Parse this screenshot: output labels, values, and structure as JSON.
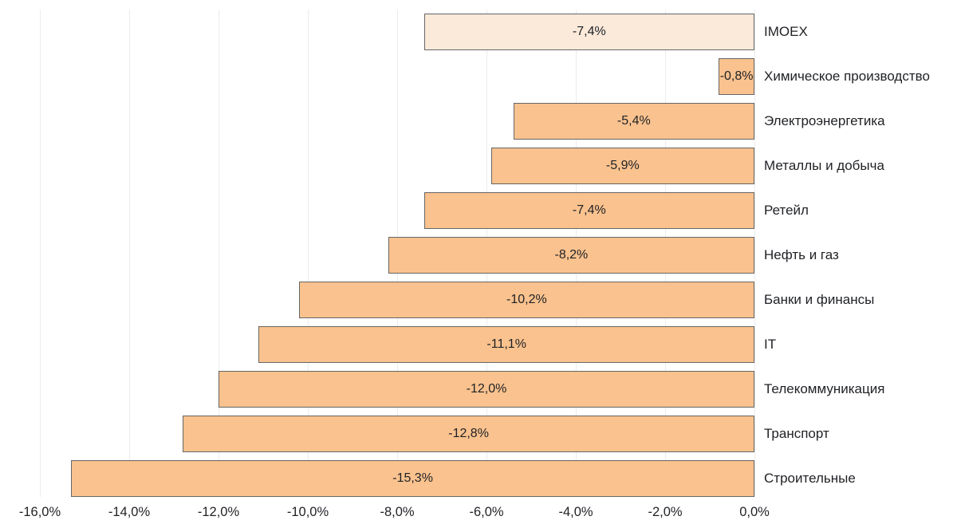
{
  "chart_data": {
    "type": "bar",
    "orientation": "horizontal",
    "title": "",
    "xlabel": "",
    "ylabel": "",
    "xlim": [
      -16,
      0
    ],
    "grid": "vertical",
    "legend": "none",
    "categories": [
      "IMOEX",
      "Химическое производство",
      "Электроэнергетика",
      "Металлы и добыча",
      "Ретейл",
      "Нефть и газ",
      "Банки и финансы",
      "IT",
      "Телекоммуникация",
      "Транспорт",
      "Строительные"
    ],
    "values": [
      -7.4,
      -0.8,
      -5.4,
      -5.9,
      -7.4,
      -8.2,
      -10.2,
      -11.1,
      -12.0,
      -12.8,
      -15.3
    ],
    "value_labels": [
      "-7,4%",
      "-0,8%",
      "-5,4%",
      "-5,9%",
      "-7,4%",
      "-8,2%",
      "-10,2%",
      "-11,1%",
      "-12,0%",
      "-12,8%",
      "-15,3%"
    ],
    "highlight_category": "IMOEX",
    "x_tick_values": [
      -16,
      -14,
      -12,
      -10,
      -8,
      -6,
      -4,
      -2,
      0
    ],
    "x_tick_labels": [
      "-16,0%",
      "-14,0%",
      "-12,0%",
      "-10,0%",
      "-8,0%",
      "-6,0%",
      "-4,0%",
      "-2,0%",
      "0,0%"
    ],
    "colors": {
      "bar_fill": "#f9c28e",
      "highlight_fill": "#fbe9da",
      "bar_border": "#666666",
      "gridline": "#ececec",
      "text": "#1f2125",
      "background": "#ffffff"
    }
  }
}
